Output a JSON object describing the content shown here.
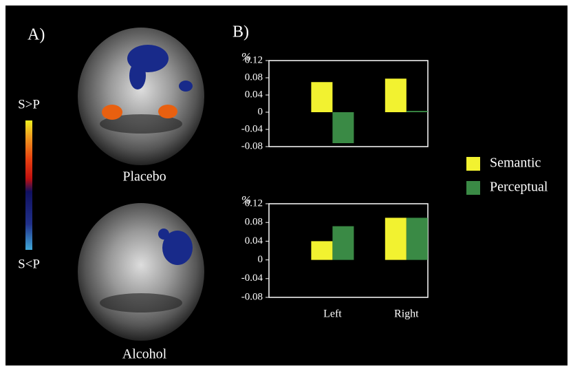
{
  "panels": {
    "a_label": "A)",
    "b_label": "B)",
    "colorbar_top": "S>P",
    "colorbar_bottom": "S<P",
    "image_top": "Placebo",
    "image_bottom": "Alcohol"
  },
  "chart_data": [
    {
      "type": "bar",
      "ylabel": "%",
      "categories": [
        null,
        null
      ],
      "series": [
        {
          "color": "#f2f230",
          "values": [
            0.07,
            0.078
          ]
        },
        {
          "color": "#3a8a45",
          "values": [
            -0.072,
            0.003
          ]
        }
      ],
      "ylim": [
        -0.08,
        0.12
      ],
      "yticks": [
        -0.08,
        -0.04,
        0,
        0.04,
        0.08,
        0.12
      ]
    },
    {
      "type": "bar",
      "ylabel": "%",
      "categories": [
        "Left",
        "Right"
      ],
      "series": [
        {
          "name": "Semantic",
          "color": "#f2f230",
          "values": [
            0.04,
            0.09
          ]
        },
        {
          "name": "Perceptual",
          "color": "#3a8a45",
          "values": [
            0.072,
            0.09
          ]
        }
      ],
      "ylim": [
        -0.08,
        0.12
      ],
      "yticks": [
        -0.08,
        -0.04,
        0,
        0.04,
        0.08,
        0.12
      ],
      "legend": "right"
    }
  ]
}
